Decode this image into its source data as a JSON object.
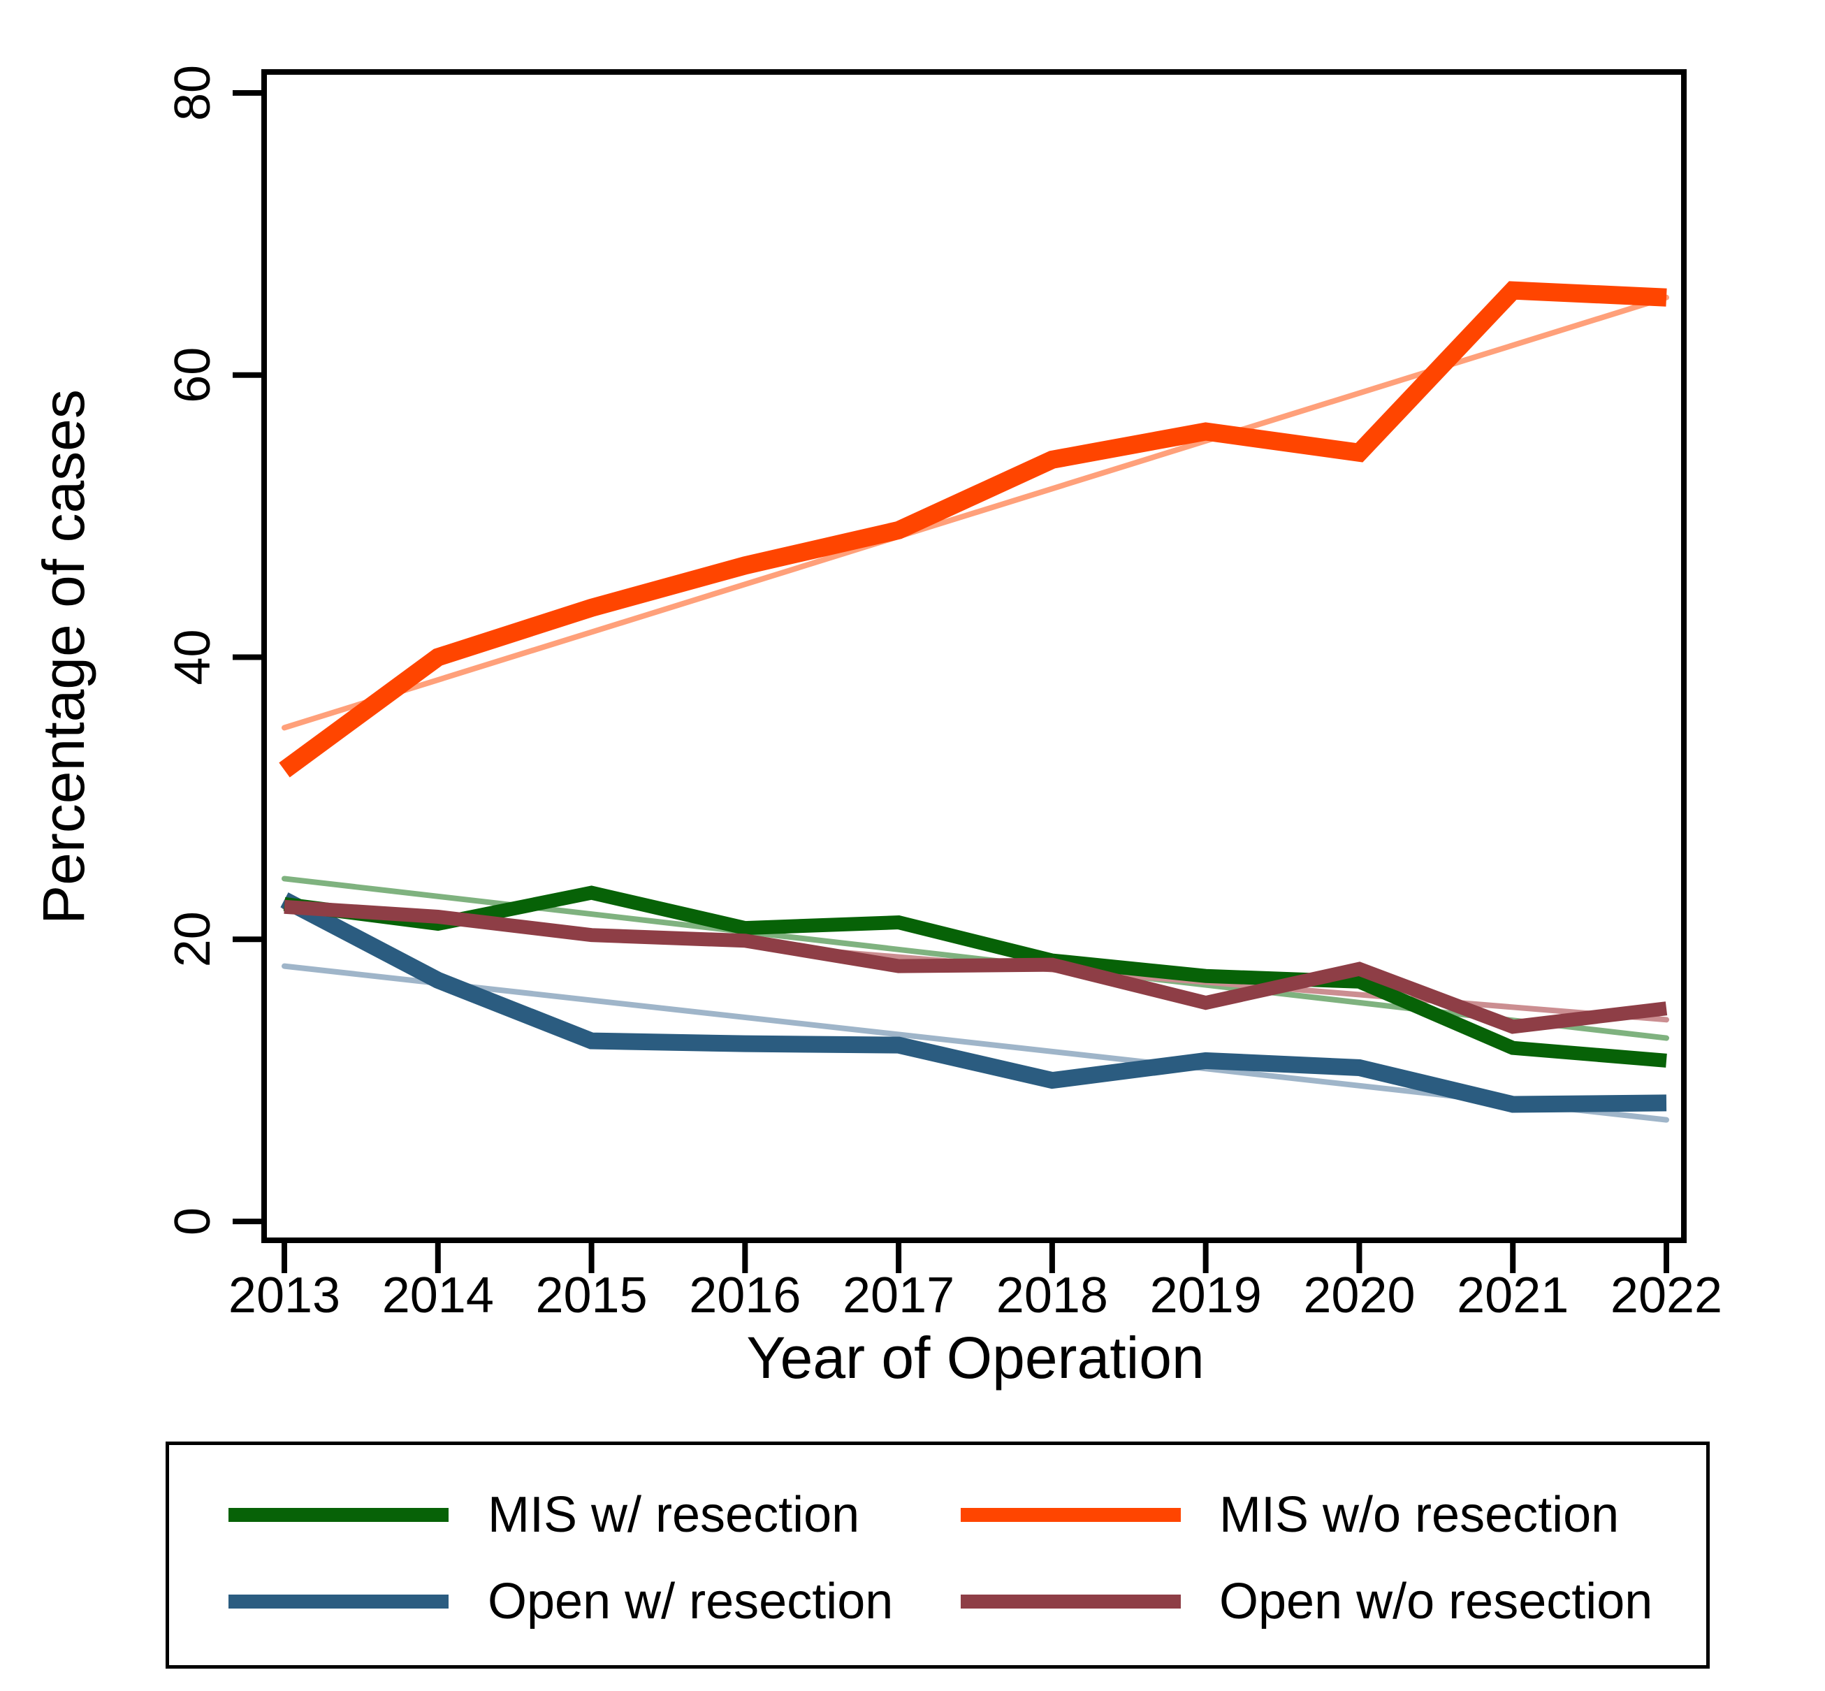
{
  "figure": {
    "background": "#ffffff",
    "axis_color": "#000000"
  },
  "chart_data": {
    "type": "line",
    "title": "",
    "xlabel": "Year of Operation",
    "ylabel": "Percentage of cases",
    "x": [
      2013,
      2014,
      2015,
      2016,
      2017,
      2018,
      2019,
      2020,
      2021,
      2022
    ],
    "xtick_labels": [
      "2013",
      "2014",
      "2015",
      "2016",
      "2017",
      "2018",
      "2019",
      "2020",
      "2021",
      "2022"
    ],
    "ylim": [
      0,
      80
    ],
    "yticks": [
      0,
      20,
      40,
      60,
      80
    ],
    "ytick_labels": [
      "0",
      "20",
      "40",
      "60",
      "80"
    ],
    "grid": false,
    "legend_position": "bottom",
    "series": [
      {
        "name": "MIS w/ resection",
        "color": "#076207",
        "line_width": 20,
        "values": [
          22.5,
          21.1,
          23.3,
          20.8,
          21.2,
          18.5,
          17.4,
          17.0,
          12.3,
          11.4
        ]
      },
      {
        "name": "MIS w/o resection",
        "color": "#FF4500",
        "line_width": 26,
        "values": [
          32.0,
          40.0,
          43.5,
          46.5,
          49.0,
          54.0,
          56.0,
          54.5,
          66.0,
          65.5
        ]
      },
      {
        "name": "Open w/ resection",
        "color": "#2B5C80",
        "line_width": 24,
        "values": [
          22.8,
          17.1,
          12.8,
          12.6,
          12.5,
          10.0,
          11.4,
          10.9,
          8.3,
          8.4
        ]
      },
      {
        "name": "Open w/o resection",
        "color": "#8E3E46",
        "line_width": 20,
        "values": [
          22.3,
          21.6,
          20.3,
          19.9,
          18.1,
          18.2,
          15.5,
          17.9,
          13.8,
          15.1
        ]
      }
    ],
    "trend_lines": [
      {
        "series": "MIS w/ resection",
        "color": "#7FB27F",
        "line_width": 8,
        "start_value": 24.3,
        "end_value": 13.0
      },
      {
        "series": "MIS w/o resection",
        "color": "#FFA07A",
        "line_width": 8,
        "start_value": 35.0,
        "end_value": 65.5
      },
      {
        "series": "Open w/ resection",
        "color": "#9FB5C9",
        "line_width": 8,
        "start_value": 18.1,
        "end_value": 7.2
      },
      {
        "series": "Open w/o resection",
        "color": "#CB8E91",
        "line_width": 8,
        "start_value": 22.3,
        "end_value": 14.3
      }
    ],
    "legend": {
      "items": [
        "MIS w/ resection",
        "MIS w/o resection",
        "Open w/ resection",
        "Open w/o resection"
      ]
    }
  }
}
